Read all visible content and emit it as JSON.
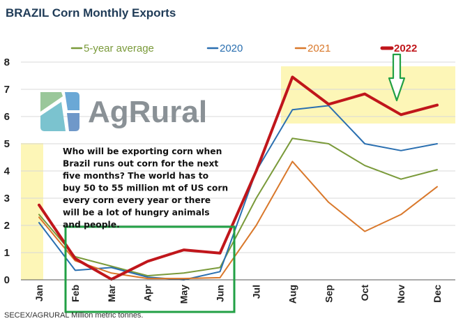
{
  "chart_data": {
    "type": "line",
    "title": "BRAZIL  Corn Monthly Exports",
    "categories": [
      "Jan",
      "Feb",
      "Mar",
      "Apr",
      "May",
      "Jun",
      "Jul",
      "Aug",
      "Sep",
      "Oct",
      "Nov",
      "Dec"
    ],
    "ylim": [
      0,
      8
    ],
    "yticks": [
      0,
      1,
      2,
      3,
      4,
      5,
      6,
      7,
      8
    ],
    "ylabel": "",
    "xlabel": "",
    "source": "SECEX/AGRURAL   Million metric tonnes.",
    "series": [
      {
        "name": "5-year average",
        "color": "#7a9a3a",
        "values": [
          2.4,
          0.85,
          0.5,
          0.15,
          0.25,
          0.45,
          3.0,
          5.2,
          5.0,
          4.2,
          3.7,
          4.05
        ]
      },
      {
        "name": "2020",
        "color": "#2a6fb0",
        "values": [
          2.1,
          0.35,
          0.45,
          0.1,
          0.0,
          0.3,
          4.0,
          6.25,
          6.4,
          5.0,
          4.75,
          5.0
        ]
      },
      {
        "name": "2021",
        "color": "#d9782b",
        "values": [
          2.3,
          0.7,
          0.25,
          0.05,
          0.05,
          0.08,
          2.0,
          4.35,
          2.85,
          1.78,
          2.4,
          3.42
        ]
      },
      {
        "name": "2022",
        "color": "#c0161b",
        "values": [
          2.75,
          0.78,
          0.02,
          0.68,
          1.1,
          0.98,
          4.0,
          7.45,
          6.45,
          6.83,
          6.07,
          6.42
        ]
      }
    ],
    "annotation": "Who will be exporting corn when Brazil runs out corn for the next five months? The world has to buy 50 to 55 million mt of US corn every corn every year or there will be a lot of hungry animals and people.",
    "logo_text": "AgRural",
    "colors": {
      "highlight": "#fdf6b7",
      "box": "#22a045",
      "arrow": "#22a045",
      "grid": "#d8d8d8"
    }
  }
}
